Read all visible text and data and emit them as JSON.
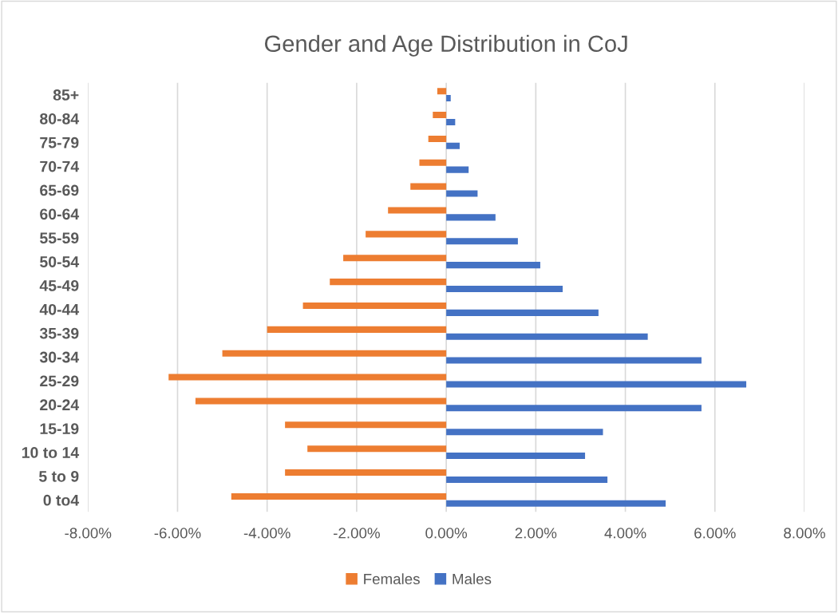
{
  "chart_data": {
    "type": "bar",
    "orientation": "horizontal",
    "title": "Gender and Age Distribution in CoJ",
    "categories": [
      "85+",
      "80-84",
      "75-79",
      "70-74",
      "65-69",
      "60-64",
      "55-59",
      "50-54",
      "45-49",
      "40-44",
      "35-39",
      "30-34",
      "25-29",
      "20-24",
      "15-19",
      "10 to 14",
      "5 to 9",
      "0 to4"
    ],
    "series": [
      {
        "name": "Females",
        "color": "#ed7d31",
        "values": [
          -0.2,
          -0.3,
          -0.4,
          -0.6,
          -0.8,
          -1.3,
          -1.8,
          -2.3,
          -2.6,
          -3.2,
          -4.0,
          -5.0,
          -6.2,
          -5.6,
          -3.6,
          -3.1,
          -3.6,
          -4.8
        ]
      },
      {
        "name": "Males",
        "color": "#4472c4",
        "values": [
          0.1,
          0.2,
          0.3,
          0.5,
          0.7,
          1.1,
          1.6,
          2.1,
          2.6,
          3.4,
          4.5,
          5.7,
          6.7,
          5.7,
          3.5,
          3.1,
          3.6,
          4.9
        ]
      }
    ],
    "xlim": [
      -8,
      8
    ],
    "xticks": [
      {
        "value": -8,
        "label": "-8.00%"
      },
      {
        "value": -6,
        "label": "-6.00%"
      },
      {
        "value": -4,
        "label": "-4.00%"
      },
      {
        "value": -2,
        "label": "-2.00%"
      },
      {
        "value": 0,
        "label": "0.00%"
      },
      {
        "value": 2,
        "label": "2.00%"
      },
      {
        "value": 4,
        "label": "4.00%"
      },
      {
        "value": 6,
        "label": "6.00%"
      },
      {
        "value": 8,
        "label": "8.00%"
      }
    ],
    "grid": "x",
    "legend": "bottom"
  }
}
